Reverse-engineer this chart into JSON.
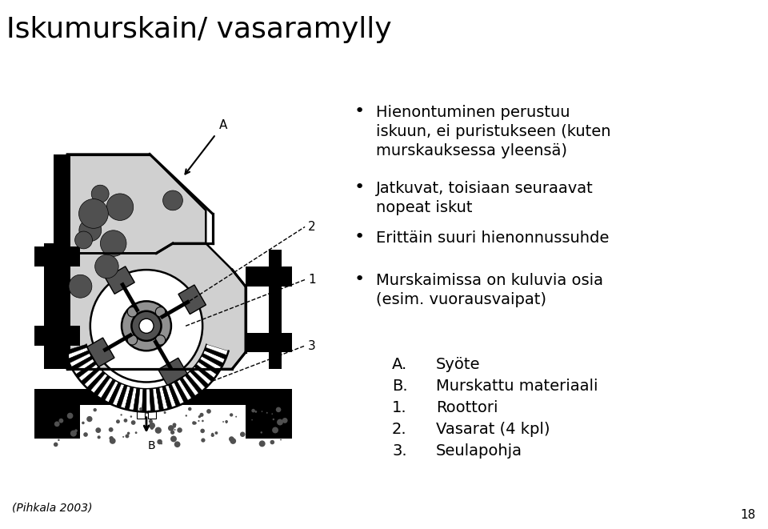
{
  "title": "Iskumurskain/ vasaramylly",
  "title_fontsize": 26,
  "background_color": "#ffffff",
  "bullet_points": [
    "Hienontuminen perustuu\niskuun, ei puristukseen (kuten\nmurskauksessa yleensä)",
    "Jatkuvat, toisiaan seuraavat\nnopeat iskut",
    "Erittäin suuri hienonnussuhde",
    "Murskaimissa on kuluvia osia\n(esim. vuorausvaipat)"
  ],
  "list_items": [
    [
      "A.",
      "Syöte"
    ],
    [
      "B.",
      "Murskattu materiaali"
    ],
    [
      "1.",
      "Roottori"
    ],
    [
      "2.",
      "Vasarat (4 kpl)"
    ],
    [
      "3.",
      "Seulapohja"
    ]
  ],
  "footnote": "(Pihkala 2003)",
  "page_number": "18",
  "bullet_fontsize": 14,
  "list_fontsize": 14
}
